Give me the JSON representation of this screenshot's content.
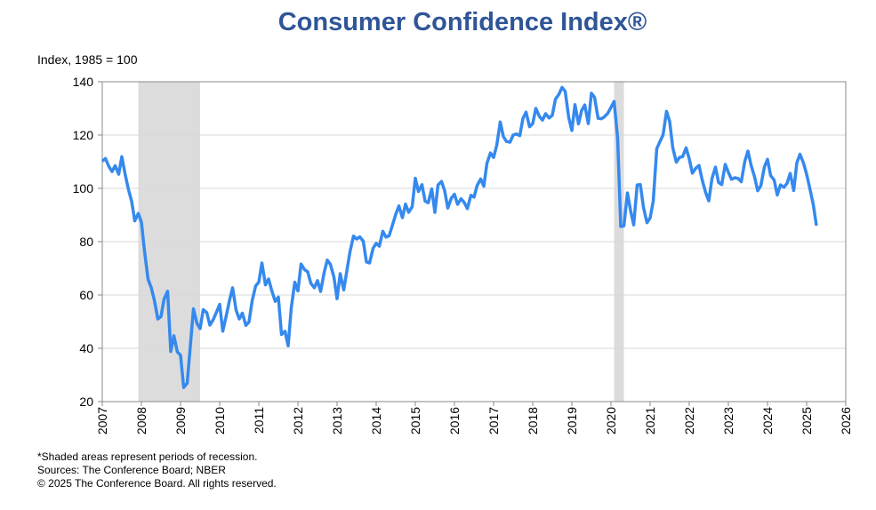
{
  "chart_data": {
    "type": "line",
    "title": "Consumer Confidence Index®",
    "y_label": "Index, 1985 = 100",
    "notes": [
      "*Shaded areas represent periods of recession.",
      "Sources: The Conference Board;  NBER",
      "© 2025 The Conference Board. All rights reserved."
    ],
    "color": "#3589ee",
    "recession_color": "#dcdcdc",
    "recessions": [
      [
        2007.92,
        2009.5
      ],
      [
        2020.08,
        2020.33
      ]
    ],
    "grid": true,
    "xlim": [
      2007,
      2026
    ],
    "xticks": [
      2007,
      2008,
      2009,
      2010,
      2011,
      2012,
      2013,
      2014,
      2015,
      2016,
      2017,
      2018,
      2019,
      2020,
      2021,
      2022,
      2023,
      2024,
      2025,
      2026
    ],
    "ylim": [
      20,
      140
    ],
    "yticks": [
      20,
      40,
      60,
      80,
      100,
      120,
      140
    ],
    "x": [
      2007.0,
      2007.08,
      2007.17,
      2007.25,
      2007.33,
      2007.42,
      2007.5,
      2007.58,
      2007.67,
      2007.75,
      2007.83,
      2007.92,
      2008.0,
      2008.08,
      2008.17,
      2008.25,
      2008.33,
      2008.42,
      2008.5,
      2008.58,
      2008.67,
      2008.75,
      2008.83,
      2008.92,
      2009.0,
      2009.08,
      2009.17,
      2009.25,
      2009.33,
      2009.42,
      2009.5,
      2009.58,
      2009.67,
      2009.75,
      2009.83,
      2009.92,
      2010.0,
      2010.08,
      2010.17,
      2010.25,
      2010.33,
      2010.42,
      2010.5,
      2010.58,
      2010.67,
      2010.75,
      2010.83,
      2010.92,
      2011.0,
      2011.08,
      2011.17,
      2011.25,
      2011.33,
      2011.42,
      2011.5,
      2011.58,
      2011.67,
      2011.75,
      2011.83,
      2011.92,
      2012.0,
      2012.08,
      2012.17,
      2012.25,
      2012.33,
      2012.42,
      2012.5,
      2012.58,
      2012.67,
      2012.75,
      2012.83,
      2012.92,
      2013.0,
      2013.08,
      2013.17,
      2013.25,
      2013.33,
      2013.42,
      2013.5,
      2013.58,
      2013.67,
      2013.75,
      2013.83,
      2013.92,
      2014.0,
      2014.08,
      2014.17,
      2014.25,
      2014.33,
      2014.42,
      2014.5,
      2014.58,
      2014.67,
      2014.75,
      2014.83,
      2014.92,
      2015.0,
      2015.08,
      2015.17,
      2015.25,
      2015.33,
      2015.42,
      2015.5,
      2015.58,
      2015.67,
      2015.75,
      2015.83,
      2015.92,
      2016.0,
      2016.08,
      2016.17,
      2016.25,
      2016.33,
      2016.42,
      2016.5,
      2016.58,
      2016.67,
      2016.75,
      2016.83,
      2016.92,
      2017.0,
      2017.08,
      2017.17,
      2017.25,
      2017.33,
      2017.42,
      2017.5,
      2017.58,
      2017.67,
      2017.75,
      2017.83,
      2017.92,
      2018.0,
      2018.08,
      2018.17,
      2018.25,
      2018.33,
      2018.42,
      2018.5,
      2018.58,
      2018.67,
      2018.75,
      2018.83,
      2018.92,
      2019.0,
      2019.08,
      2019.17,
      2019.25,
      2019.33,
      2019.42,
      2019.5,
      2019.58,
      2019.67,
      2019.75,
      2019.83,
      2019.92,
      2020.0,
      2020.08,
      2020.17,
      2020.25,
      2020.33,
      2020.42,
      2020.5,
      2020.58,
      2020.67,
      2020.75,
      2020.83,
      2020.92,
      2021.0,
      2021.08,
      2021.17,
      2021.25,
      2021.33,
      2021.42,
      2021.5,
      2021.58,
      2021.67,
      2021.75,
      2021.83,
      2021.92,
      2022.0,
      2022.08,
      2022.17,
      2022.25,
      2022.33,
      2022.42,
      2022.5,
      2022.58,
      2022.67,
      2022.75,
      2022.83,
      2022.92,
      2023.0,
      2023.08,
      2023.17,
      2023.25,
      2023.33,
      2023.42,
      2023.5,
      2023.58,
      2023.67,
      2023.75,
      2023.83,
      2023.92,
      2024.0,
      2024.08,
      2024.17,
      2024.25,
      2024.33,
      2024.42,
      2024.5,
      2024.58,
      2024.67,
      2024.75,
      2024.83,
      2024.92,
      2025.0,
      2025.08,
      2025.17,
      2025.25
    ],
    "values": [
      110.2,
      111.2,
      108.2,
      106.3,
      108.5,
      105.3,
      111.9,
      105.6,
      99.5,
      95.2,
      87.8,
      90.6,
      87.3,
      76.4,
      65.9,
      62.8,
      58.1,
      51.0,
      51.9,
      58.5,
      61.4,
      38.8,
      44.7,
      38.6,
      37.4,
      25.3,
      26.9,
      40.8,
      54.8,
      49.3,
      47.4,
      54.5,
      53.4,
      48.7,
      50.6,
      53.6,
      56.5,
      46.4,
      52.3,
      57.9,
      62.7,
      54.3,
      51.0,
      53.2,
      48.6,
      49.9,
      57.8,
      63.4,
      64.8,
      72.0,
      63.8,
      66.0,
      61.7,
      57.6,
      59.2,
      45.2,
      46.4,
      40.9,
      55.2,
      64.8,
      61.5,
      71.6,
      69.5,
      68.7,
      64.4,
      62.7,
      65.4,
      61.3,
      68.4,
      73.1,
      71.5,
      66.7,
      58.6,
      68.0,
      61.9,
      69.0,
      76.2,
      82.1,
      81.0,
      81.8,
      80.2,
      72.4,
      72.0,
      77.5,
      79.4,
      78.3,
      83.9,
      81.7,
      82.2,
      86.4,
      90.3,
      93.4,
      89.0,
      94.1,
      91.0,
      93.1,
      103.8,
      98.8,
      101.4,
      95.2,
      94.6,
      99.8,
      91.0,
      101.3,
      102.6,
      99.1,
      92.6,
      96.3,
      97.8,
      94.0,
      96.1,
      94.7,
      92.4,
      97.4,
      96.7,
      101.1,
      103.5,
      100.8,
      109.4,
      113.3,
      111.6,
      116.1,
      124.9,
      119.4,
      117.6,
      117.3,
      120.0,
      120.4,
      119.8,
      126.2,
      128.6,
      123.1,
      124.3,
      130.0,
      127.0,
      125.6,
      128.0,
      126.4,
      127.4,
      133.4,
      135.3,
      137.9,
      136.4,
      126.6,
      121.7,
      131.4,
      124.2,
      129.2,
      131.3,
      124.3,
      135.7,
      134.2,
      126.3,
      126.1,
      126.8,
      128.2,
      130.4,
      132.6,
      118.8,
      85.7,
      85.9,
      98.3,
      91.7,
      86.3,
      101.3,
      101.4,
      92.9,
      87.1,
      88.9,
      95.2,
      114.9,
      117.5,
      120.0,
      128.9,
      125.1,
      115.2,
      109.8,
      111.6,
      111.9,
      115.2,
      111.1,
      105.7,
      107.6,
      108.6,
      103.2,
      98.4,
      95.3,
      103.6,
      108.0,
      102.2,
      101.4,
      109.0,
      106.0,
      103.4,
      104.0,
      103.7,
      102.5,
      110.1,
      114.0,
      108.7,
      104.3,
      99.1,
      101.0,
      108.0,
      110.9,
      104.8,
      103.1,
      97.5,
      101.3,
      100.4,
      101.9,
      105.6,
      99.2,
      109.6,
      112.8,
      109.5,
      105.3,
      100.1,
      93.9,
      86.0
    ]
  }
}
